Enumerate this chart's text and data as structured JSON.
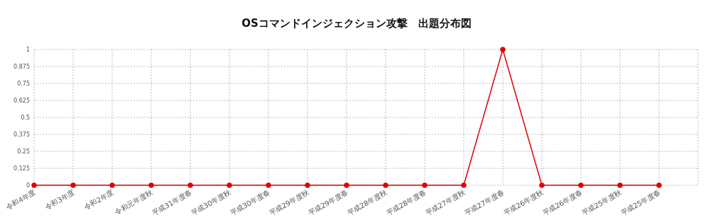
{
  "chart_data": {
    "type": "line",
    "title": "OSコマンドインジェクション攻撃　出題分布図",
    "categories": [
      "令和4年度",
      "令和3年度",
      "令和2年度",
      "令和元年度秋",
      "平成31年度春",
      "平成30年度秋",
      "平成30年度春",
      "平成29年度秋",
      "平成29年度春",
      "平成28年度秋",
      "平成28年度春",
      "平成27年度秋",
      "平成27年度春",
      "平成26年度秋",
      "平成26年度春",
      "平成25年度秋",
      "平成25年度春"
    ],
    "series": [
      {
        "color": "#e00000",
        "values": [
          0,
          0,
          0,
          0,
          0,
          0,
          0,
          0,
          0,
          0,
          0,
          0,
          1,
          0,
          0,
          0,
          0
        ]
      }
    ],
    "ylim": [
      0,
      1
    ],
    "yticks": [
      0,
      0.125,
      0.25,
      0.375,
      0.5,
      0.625,
      0.75,
      0.875,
      1
    ],
    "grid": true,
    "marker": "circle",
    "line_style": "solid"
  }
}
